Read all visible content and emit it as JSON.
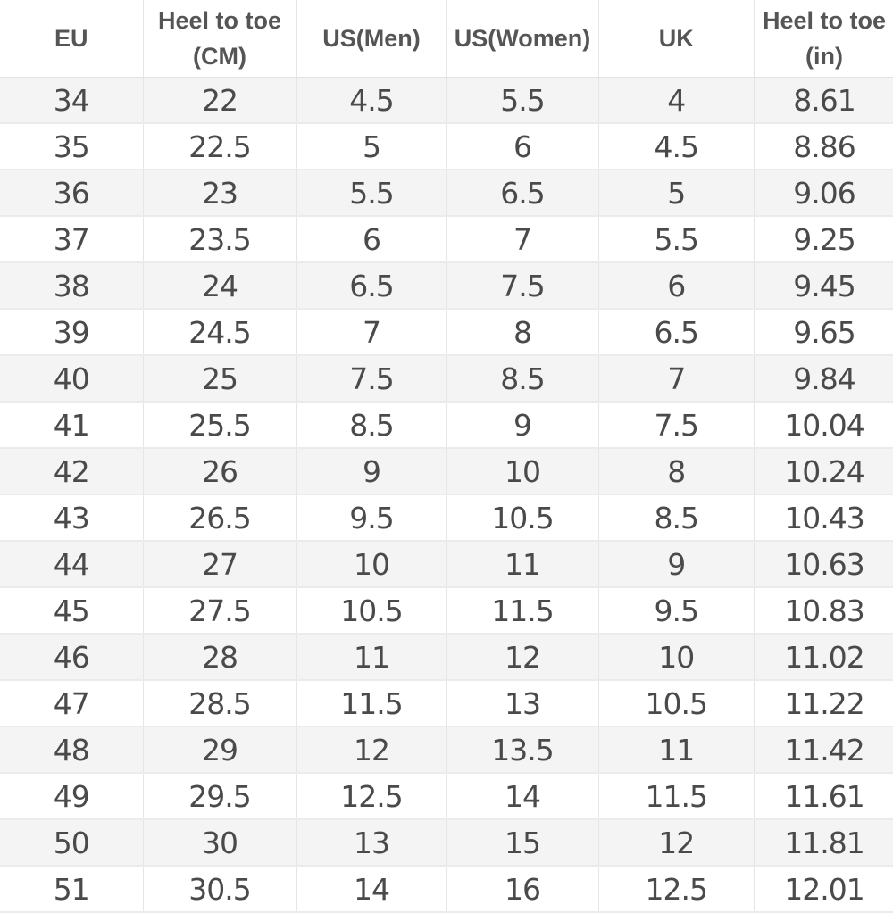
{
  "headers": [
    {
      "lines": [
        "EU"
      ]
    },
    {
      "lines": [
        "Heel to toe",
        "(CM)"
      ]
    },
    {
      "lines": [
        "US(Men)"
      ]
    },
    {
      "lines": [
        "US(Women)"
      ]
    },
    {
      "lines": [
        "UK"
      ]
    },
    {
      "lines": [
        "Heel to toe",
        "(in)"
      ]
    }
  ],
  "rows": [
    [
      "34",
      "22",
      "4.5",
      "5.5",
      "4",
      "8.61"
    ],
    [
      "35",
      "22.5",
      "5",
      "6",
      "4.5",
      "8.86"
    ],
    [
      "36",
      "23",
      "5.5",
      "6.5",
      "5",
      "9.06"
    ],
    [
      "37",
      "23.5",
      "6",
      "7",
      "5.5",
      "9.25"
    ],
    [
      "38",
      "24",
      "6.5",
      "7.5",
      "6",
      "9.45"
    ],
    [
      "39",
      "24.5",
      "7",
      "8",
      "6.5",
      "9.65"
    ],
    [
      "40",
      "25",
      "7.5",
      "8.5",
      "7",
      "9.84"
    ],
    [
      "41",
      "25.5",
      "8.5",
      "9",
      "7.5",
      "10.04"
    ],
    [
      "42",
      "26",
      "9",
      "10",
      "8",
      "10.24"
    ],
    [
      "43",
      "26.5",
      "9.5",
      "10.5",
      "8.5",
      "10.43"
    ],
    [
      "44",
      "27",
      "10",
      "11",
      "9",
      "10.63"
    ],
    [
      "45",
      "27.5",
      "10.5",
      "11.5",
      "9.5",
      "10.83"
    ],
    [
      "46",
      "28",
      "11",
      "12",
      "10",
      "11.02"
    ],
    [
      "47",
      "28.5",
      "11.5",
      "13",
      "10.5",
      "11.22"
    ],
    [
      "48",
      "29",
      "12",
      "13.5",
      "11",
      "11.42"
    ],
    [
      "49",
      "29.5",
      "12.5",
      "14",
      "11.5",
      "11.61"
    ],
    [
      "50",
      "30",
      "13",
      "15",
      "12",
      "11.81"
    ],
    [
      "51",
      "30.5",
      "14",
      "16",
      "12.5",
      "12.01"
    ]
  ]
}
